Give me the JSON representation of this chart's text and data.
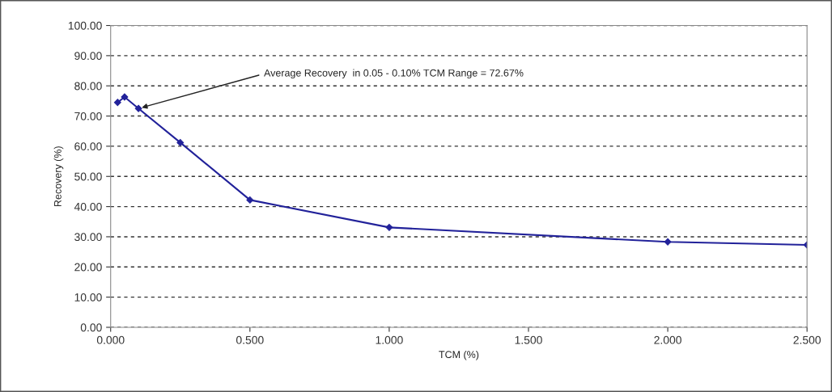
{
  "chart_data": {
    "type": "line",
    "xlabel": "TCM (%)",
    "ylabel": "Recovery (%)",
    "x": [
      0.025,
      0.05,
      0.1,
      0.25,
      0.5,
      1.0,
      2.0,
      2.5
    ],
    "series": [
      {
        "color": "#22229a",
        "values": [
          74.5,
          76.3,
          72.5,
          61.2,
          42.2,
          33.1,
          28.3,
          27.3
        ]
      }
    ],
    "xlim": [
      0,
      2.5
    ],
    "ylim": [
      0,
      100
    ],
    "xticks": [
      {
        "value": 0,
        "label": "0.000"
      },
      {
        "value": 0.5,
        "label": "0.500"
      },
      {
        "value": 1.0,
        "label": "1.000"
      },
      {
        "value": 1.5,
        "label": "1.500"
      },
      {
        "value": 2.0,
        "label": "2.000"
      },
      {
        "value": 2.5,
        "label": "2.500"
      }
    ],
    "yticks": [
      {
        "value": 0,
        "label": "0.00"
      },
      {
        "value": 10,
        "label": "10.00"
      },
      {
        "value": 20,
        "label": "20.00"
      },
      {
        "value": 30,
        "label": "30.00"
      },
      {
        "value": 40,
        "label": "40.00"
      },
      {
        "value": 50,
        "label": "50.00"
      },
      {
        "value": 60,
        "label": "60.00"
      },
      {
        "value": 70,
        "label": "70.00"
      },
      {
        "value": 80,
        "label": "80.00"
      },
      {
        "value": 90,
        "label": "90.00"
      },
      {
        "value": 100,
        "label": "100.00"
      }
    ],
    "grid": "y",
    "marker": "diamond",
    "line_style": "solid",
    "annotations": [
      {
        "text": "Average Recovery  in 0.05 - 0.10% TCM Range = 72.67%",
        "x": 0.1,
        "y": 72.5
      }
    ]
  }
}
